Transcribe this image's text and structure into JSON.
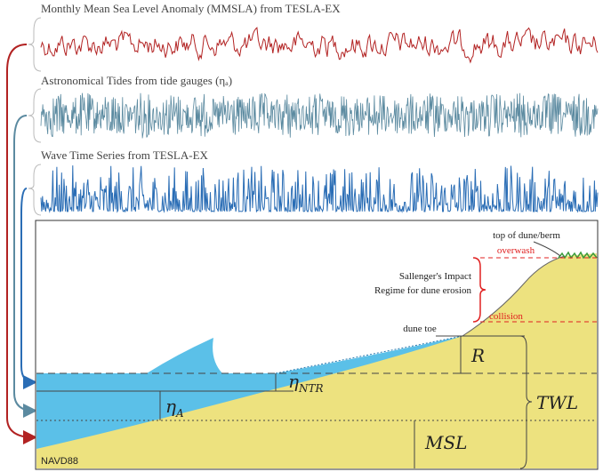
{
  "panels": [
    {
      "title": "Monthly Mean Sea Level Anomaly (MMSLA) from TESLA-EX"
    },
    {
      "title": "Astronomical Tides from tide gauges (ηₐ)"
    },
    {
      "title": "Wave Time Series from TESLA-EX"
    }
  ],
  "profile": {
    "top_of_dune": "top of dune/berm",
    "overwash": "overwash",
    "impact_line1": "Sallenger's Impact",
    "impact_line2": "Regime for dune erosion",
    "collision": "collision",
    "dune_toe": "dune toe",
    "runup": "R",
    "eta_ntr": {
      "symbol": "η",
      "sub": "NTR"
    },
    "eta_a": {
      "symbol": "η",
      "sub": "A"
    },
    "twl": "TWL",
    "msl": "MSL",
    "datum": "NAVD88"
  }
}
